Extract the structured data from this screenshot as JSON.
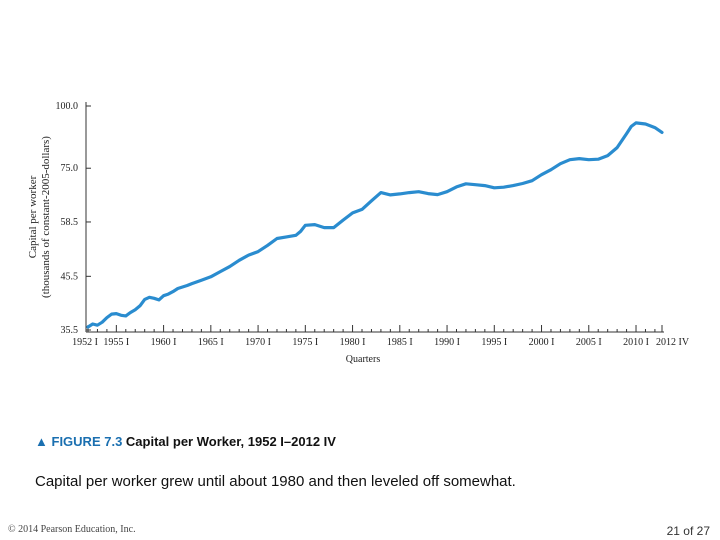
{
  "chart_data": {
    "type": "line",
    "xlabel": "Quarters",
    "ylabel": [
      "Capital per worker",
      "(thousands of constant-2005-dollars)"
    ],
    "xlim": [
      1952.0,
      2012.75
    ],
    "ylim": [
      35.5,
      100.0
    ],
    "y_scale": "log",
    "yticks": [
      35.5,
      45.5,
      58.5,
      75.0,
      100.0
    ],
    "ytick_labels": [
      "35.5",
      "45.5",
      "58.5",
      "75.0",
      "100.0"
    ],
    "xticks": [
      1952.0,
      1955.0,
      1960.0,
      1965.0,
      1970.0,
      1975.0,
      1980.0,
      1985.0,
      1990.0,
      1995.0,
      2000.0,
      2005.0,
      2010.0,
      2012.75
    ],
    "xtick_labels": [
      "1952 I",
      "1955 I",
      "1960 I",
      "1965 I",
      "1970 I",
      "1975 I",
      "1980 I",
      "1985 I",
      "1990 I",
      "1995 I",
      "2000 I",
      "2005 I",
      "2010 I",
      "2012 IV"
    ],
    "grid": false,
    "line_color": "#2a8ccf",
    "series": [
      {
        "x": [
          1952.0,
          1952.5,
          1953.0,
          1953.5,
          1954.0,
          1954.5,
          1955.0,
          1955.5,
          1956.0,
          1956.5,
          1957.0,
          1957.5,
          1958.0,
          1958.5,
          1959.0,
          1959.5,
          1960.0,
          1960.5,
          1961.0,
          1961.5,
          1962.0,
          1962.5,
          1963.0,
          1964.0,
          1965.0,
          1966.0,
          1967.0,
          1968.0,
          1969.0,
          1970.0,
          1971.0,
          1972.0,
          1973.0,
          1974.0,
          1974.5,
          1975.0,
          1976.0,
          1977.0,
          1978.0,
          1979.0,
          1980.0,
          1981.0,
          1982.0,
          1983.0,
          1984.0,
          1985.0,
          1986.0,
          1987.0,
          1988.0,
          1989.0,
          1990.0,
          1991.0,
          1992.0,
          1993.0,
          1994.0,
          1995.0,
          1996.0,
          1997.0,
          1998.0,
          1999.0,
          2000.0,
          2001.0,
          2002.0,
          2003.0,
          2004.0,
          2005.0,
          2006.0,
          2007.0,
          2008.0,
          2009.0,
          2009.5,
          2010.0,
          2011.0,
          2012.0,
          2012.75
        ],
        "values": [
          36.0,
          36.5,
          36.3,
          36.8,
          37.6,
          38.2,
          38.3,
          38.0,
          37.9,
          38.5,
          39.0,
          39.7,
          40.9,
          41.3,
          41.1,
          40.8,
          41.6,
          41.9,
          42.4,
          43.0,
          43.3,
          43.6,
          44.0,
          44.7,
          45.4,
          46.5,
          47.6,
          49.0,
          50.2,
          51.0,
          52.5,
          54.2,
          54.6,
          55.0,
          56.0,
          57.6,
          57.8,
          57.0,
          57.0,
          59.0,
          61.0,
          62.0,
          64.5,
          67.0,
          66.3,
          66.6,
          67.0,
          67.3,
          66.7,
          66.4,
          67.3,
          68.8,
          69.8,
          69.5,
          69.2,
          68.5,
          68.7,
          69.2,
          69.9,
          70.8,
          72.8,
          74.5,
          76.6,
          78.0,
          78.4,
          78.0,
          78.2,
          79.5,
          82.5,
          88.0,
          91.0,
          92.5,
          92.0,
          90.5,
          88.5
        ]
      }
    ]
  },
  "caption": {
    "triangle": "▲",
    "figure_label": "FIGURE 7.3",
    "title": "Capital per Worker, 1952 I–2012 IV"
  },
  "description": "Capital per worker grew until about 1980 and then leveled off somewhat.",
  "footer": {
    "copyright": "© 2014 Pearson Education, Inc.",
    "page": "21 of 27"
  }
}
